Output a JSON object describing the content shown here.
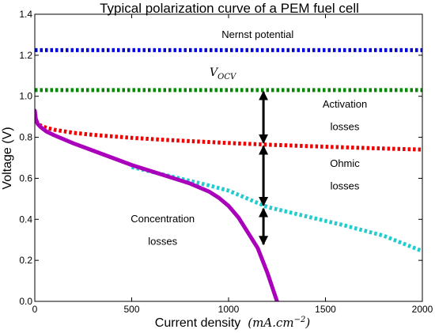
{
  "chart_data": {
    "type": "line",
    "title": "Typical polarization curve of a PEM fuel cell",
    "xlabel": "Current density",
    "xlabel_unit": "(mA.cm",
    "xlabel_unit_exp": "−2",
    "xlabel_unit_close": ")",
    "ylabel": "Voltage (V)",
    "xlim": [
      0,
      2000
    ],
    "ylim": [
      0.0,
      1.4
    ],
    "xticks": [
      "0",
      "500",
      "1000",
      "1500",
      "2000"
    ],
    "yticks": [
      "0.0",
      "0.2",
      "0.4",
      "0.6",
      "0.8",
      "1.0",
      "1.2",
      "1.4"
    ],
    "xtick_values": [
      0,
      500,
      1000,
      1500,
      2000
    ],
    "ytick_values": [
      0.0,
      0.2,
      0.4,
      0.6,
      0.8,
      1.0,
      1.2,
      1.4
    ],
    "grid": false,
    "series": [
      {
        "color": "#0000dd",
        "style": "dotted",
        "x": [
          0,
          2000
        ],
        "y": [
          1.225,
          1.225
        ]
      },
      {
        "color": "#008800",
        "style": "dotted",
        "x": [
          0,
          2000
        ],
        "y": [
          1.03,
          1.03
        ]
      },
      {
        "color": "#ee0000",
        "style": "dotted",
        "x": [
          5,
          30,
          60,
          100,
          200,
          300,
          500,
          700,
          1000,
          1200,
          1500,
          1800,
          2000
        ],
        "y": [
          0.88,
          0.857,
          0.846,
          0.837,
          0.822,
          0.812,
          0.797,
          0.786,
          0.772,
          0.764,
          0.754,
          0.745,
          0.74
        ]
      },
      {
        "color": "#22cccc",
        "style": "dotted",
        "x": [
          500,
          700,
          900,
          1000,
          1200,
          1400,
          1600,
          1800,
          2000
        ],
        "y": [
          0.655,
          0.61,
          0.565,
          0.54,
          0.46,
          0.415,
          0.37,
          0.32,
          0.245
        ]
      },
      {
        "color": "#aa00bb",
        "style": "solid",
        "x": [
          0,
          5,
          15,
          30,
          60,
          100,
          200,
          300,
          400,
          500,
          600,
          700,
          800,
          900,
          950,
          1000,
          1050,
          1100,
          1150,
          1200,
          1250
        ],
        "y": [
          0.93,
          0.89,
          0.865,
          0.85,
          0.828,
          0.81,
          0.77,
          0.735,
          0.7,
          0.665,
          0.635,
          0.605,
          0.575,
          0.535,
          0.505,
          0.465,
          0.41,
          0.335,
          0.26,
          0.14,
          0.0
        ]
      }
    ],
    "annotations": [
      {
        "text": "Nernst potential",
        "x": 1150,
        "y": 1.285
      },
      {
        "text": "V",
        "sub": "OCV",
        "x": 970,
        "y": 1.1
      },
      {
        "text": "Activation",
        "x": 1600,
        "y": 0.945
      },
      {
        "text": "losses",
        "x": 1600,
        "y": 0.835
      },
      {
        "text": "Ohmic",
        "x": 1600,
        "y": 0.655
      },
      {
        "text": "losses",
        "x": 1600,
        "y": 0.545
      },
      {
        "text": "Concentration",
        "x": 660,
        "y": 0.385
      },
      {
        "text": "losses",
        "x": 660,
        "y": 0.275
      }
    ],
    "arrows": [
      {
        "x": 1180,
        "y1": 1.03,
        "y2": 0.765
      },
      {
        "x": 1180,
        "y1": 0.765,
        "y2": 0.46
      },
      {
        "x": 1180,
        "y1": 0.46,
        "y2": 0.27
      }
    ]
  }
}
